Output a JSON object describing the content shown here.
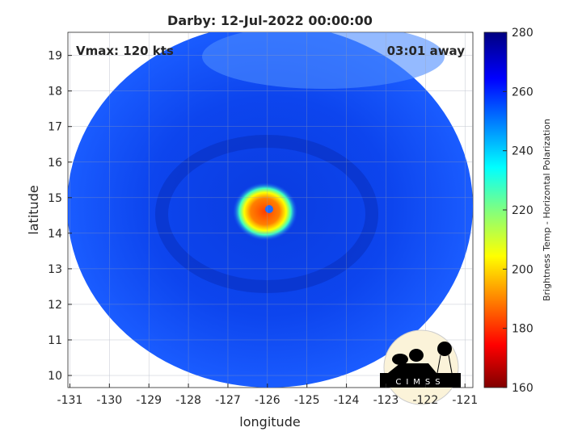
{
  "title": "Darby: 12-Jul-2022 00:00:00",
  "vmax_label": "Vmax: 120 kts",
  "time_away": "03:01 away",
  "xlabel": "longitude",
  "ylabel": "latitude",
  "x_ticks": [
    "-131",
    "-130",
    "-129",
    "-128",
    "-127",
    "-126",
    "-125",
    "-124",
    "-123",
    "-122",
    "-121"
  ],
  "y_ticks": [
    "19",
    "18",
    "17",
    "16",
    "15",
    "14",
    "13",
    "12",
    "11",
    "10"
  ],
  "colorbar": {
    "label": "Brightness Temp - Horizontal Polarization",
    "ticks": [
      "280",
      "260",
      "240",
      "220",
      "200",
      "180",
      "160"
    ],
    "range": [
      160,
      280
    ]
  },
  "logo": {
    "text": "CIMSS"
  },
  "map": {
    "lon_range": [
      -131.05,
      -120.8
    ],
    "lat_range": [
      9.66,
      19.65
    ],
    "storm_center": {
      "lon": -126.0,
      "lat": 14.6
    }
  }
}
